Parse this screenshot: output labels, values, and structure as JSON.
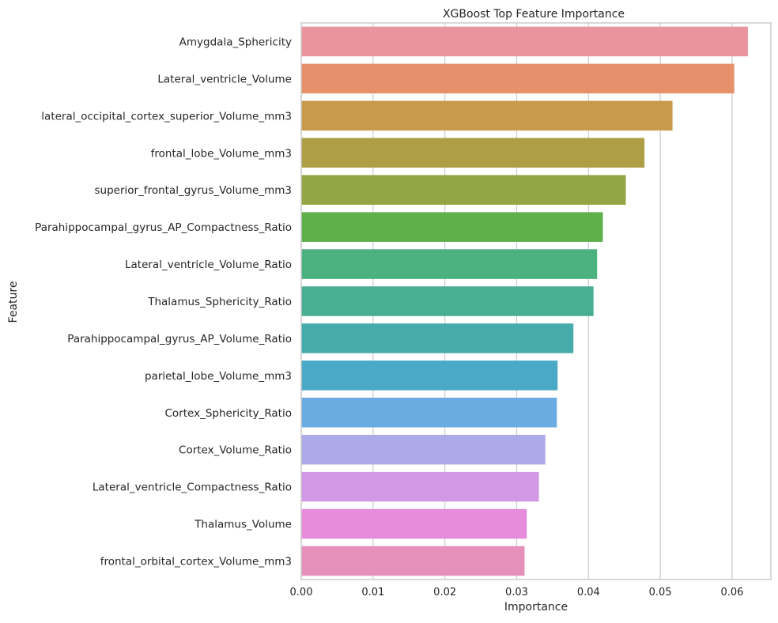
{
  "chart_data": {
    "type": "bar",
    "orientation": "horizontal",
    "title": "XGBoost Top Feature Importance",
    "xlabel": "Importance",
    "ylabel": "Feature",
    "xlim": [
      0,
      0.0654
    ],
    "xticks": [
      0.0,
      0.01,
      0.02,
      0.03,
      0.04,
      0.05,
      0.06
    ],
    "xtick_labels": [
      "0.00",
      "0.01",
      "0.02",
      "0.03",
      "0.04",
      "0.05",
      "0.06"
    ],
    "grid": "vertical",
    "categories": [
      "Amygdala_Sphericity",
      "Lateral_ventricle_Volume",
      "lateral_occipital_cortex_superior_Volume_mm3",
      "frontal_lobe_Volume_mm3",
      "superior_frontal_gyrus_Volume_mm3",
      "Parahippocampal_gyrus_AP_Compactness_Ratio",
      "Lateral_ventricle_Volume_Ratio",
      "Thalamus_Sphericity_Ratio",
      "Parahippocampal_gyrus_AP_Volume_Ratio",
      "parietal_lobe_Volume_mm3",
      "Cortex_Sphericity_Ratio",
      "Cortex_Volume_Ratio",
      "Lateral_ventricle_Compactness_Ratio",
      "Thalamus_Volume",
      "frontal_orbital_cortex_Volume_mm3"
    ],
    "values": [
      0.0622,
      0.0603,
      0.0517,
      0.0478,
      0.0452,
      0.042,
      0.0412,
      0.0407,
      0.0379,
      0.0357,
      0.0356,
      0.034,
      0.0331,
      0.0314,
      0.0311
    ],
    "colors": [
      "#ea949f",
      "#e6916b",
      "#c79a4c",
      "#ae9f47",
      "#93a544",
      "#5eb04b",
      "#4ab17f",
      "#4aae94",
      "#47aaab",
      "#4aa9c6",
      "#6aabe2",
      "#adaaea",
      "#d199e6",
      "#e78bdb",
      "#e691bc"
    ]
  }
}
